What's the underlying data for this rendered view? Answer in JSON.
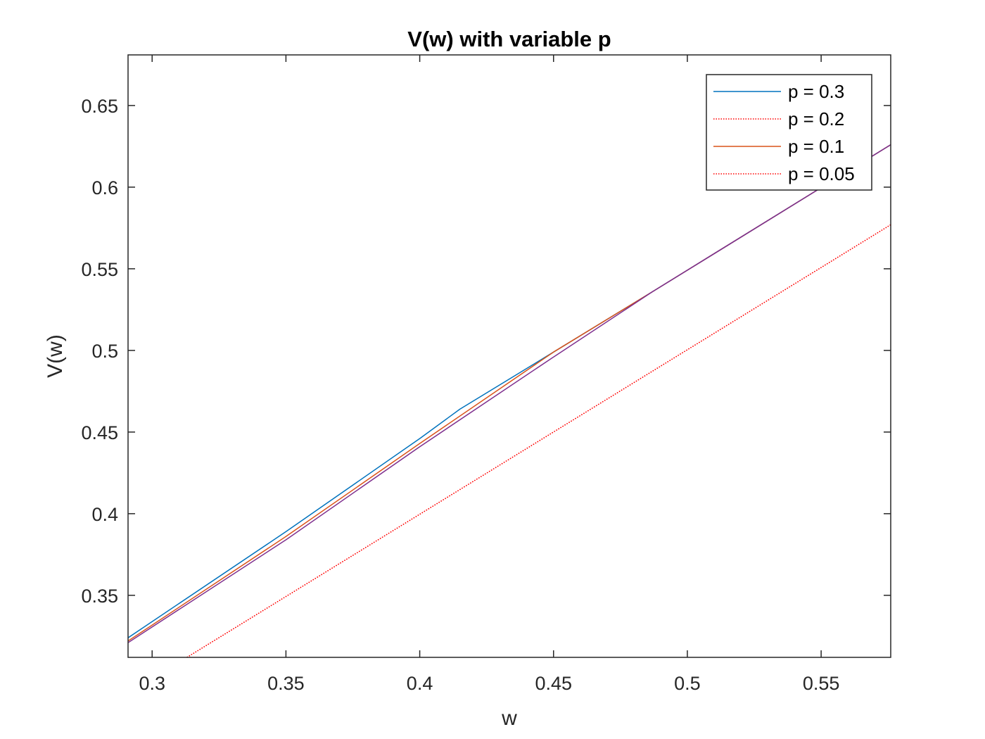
{
  "chart_data": {
    "type": "line",
    "title": "V(w) with variable p",
    "xlabel": "w",
    "ylabel": "V(w)",
    "xlim": [
      0.291,
      0.576
    ],
    "ylim": [
      0.312,
      0.681
    ],
    "xticks": [
      0.3,
      0.35,
      0.4,
      0.45,
      0.5,
      0.55
    ],
    "xtick_labels": [
      "0.3",
      "0.35",
      "0.4",
      "0.45",
      "0.5",
      "0.55"
    ],
    "yticks": [
      0.35,
      0.4,
      0.45,
      0.5,
      0.55,
      0.6,
      0.65
    ],
    "ytick_labels": [
      "0.35",
      "0.4",
      "0.45",
      "0.5",
      "0.55",
      "0.6",
      "0.65"
    ],
    "grid": false,
    "legend_position": "top-right",
    "series": [
      {
        "name": "p = 0.3",
        "color": "#0072BD",
        "style": "solid",
        "x": [
          0.291,
          0.35,
          0.4,
          0.415,
          0.43,
          0.45,
          0.487,
          0.576
        ],
        "y": [
          0.324,
          0.389,
          0.446,
          0.464,
          0.479,
          0.499,
          0.536,
          0.626
        ]
      },
      {
        "name": "p = 0.2",
        "color": "#FF0000",
        "style": "dotted",
        "x": [
          0.313,
          0.576
        ],
        "y": [
          0.312,
          0.577
        ]
      },
      {
        "name": "p = 0.1",
        "color": "#D95319",
        "style": "solid",
        "x": [
          0.291,
          0.35,
          0.4,
          0.45,
          0.487,
          0.576
        ],
        "y": [
          0.322,
          0.386,
          0.443,
          0.499,
          0.536,
          0.626
        ]
      },
      {
        "name": "p = 0.05",
        "color": "#FF0000",
        "style": "dotted",
        "x": [
          0.313,
          0.576
        ],
        "y": [
          0.312,
          0.577
        ]
      },
      {
        "name": "",
        "color": "#7E2F8E",
        "style": "solid",
        "x": [
          0.291,
          0.35,
          0.4,
          0.45,
          0.487,
          0.576
        ],
        "y": [
          0.321,
          0.384,
          0.441,
          0.496,
          0.536,
          0.626
        ]
      }
    ]
  }
}
